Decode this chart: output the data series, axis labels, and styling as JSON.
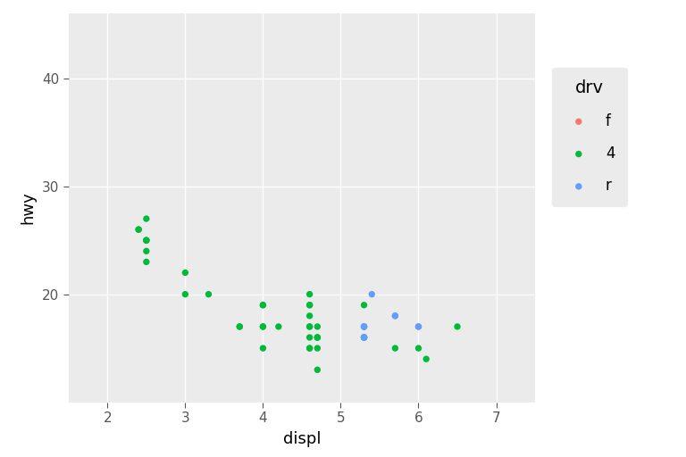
{
  "title": "",
  "xlabel": "displ",
  "ylabel": "hwy",
  "legend_title": "drv",
  "xlim": [
    1.5,
    7.5
  ],
  "ylim": [
    10,
    46
  ],
  "xticks": [
    2,
    3,
    4,
    5,
    6,
    7
  ],
  "yticks": [
    20,
    30,
    40
  ],
  "plot_bg": "#EBEBEB",
  "fig_bg": "#FFFFFF",
  "grid_color": "#FFFFFF",
  "legend_bg": "#EBEBEB",
  "drv_colors": {
    "f": "#F8766D",
    "4": "#00BA38",
    "r": "#619CFF"
  },
  "drv_order": [
    "f",
    "4",
    "r"
  ],
  "suv_data": [
    {
      "displ": 2.4,
      "hwy": 26,
      "drv": "4"
    },
    {
      "displ": 2.4,
      "hwy": 26,
      "drv": "4"
    },
    {
      "displ": 2.5,
      "hwy": 27,
      "drv": "4"
    },
    {
      "displ": 2.5,
      "hwy": 25,
      "drv": "4"
    },
    {
      "displ": 2.5,
      "hwy": 25,
      "drv": "4"
    },
    {
      "displ": 2.5,
      "hwy": 25,
      "drv": "4"
    },
    {
      "displ": 2.5,
      "hwy": 24,
      "drv": "4"
    },
    {
      "displ": 2.5,
      "hwy": 23,
      "drv": "4"
    },
    {
      "displ": 3.0,
      "hwy": 22,
      "drv": "4"
    },
    {
      "displ": 3.0,
      "hwy": 20,
      "drv": "4"
    },
    {
      "displ": 3.3,
      "hwy": 20,
      "drv": "4"
    },
    {
      "displ": 3.7,
      "hwy": 17,
      "drv": "4"
    },
    {
      "displ": 3.7,
      "hwy": 17,
      "drv": "4"
    },
    {
      "displ": 4.0,
      "hwy": 19,
      "drv": "4"
    },
    {
      "displ": 4.0,
      "hwy": 19,
      "drv": "4"
    },
    {
      "displ": 4.0,
      "hwy": 17,
      "drv": "4"
    },
    {
      "displ": 4.0,
      "hwy": 17,
      "drv": "4"
    },
    {
      "displ": 4.0,
      "hwy": 15,
      "drv": "4"
    },
    {
      "displ": 4.2,
      "hwy": 17,
      "drv": "4"
    },
    {
      "displ": 4.6,
      "hwy": 20,
      "drv": "4"
    },
    {
      "displ": 4.6,
      "hwy": 19,
      "drv": "4"
    },
    {
      "displ": 4.6,
      "hwy": 19,
      "drv": "4"
    },
    {
      "displ": 4.6,
      "hwy": 18,
      "drv": "4"
    },
    {
      "displ": 4.6,
      "hwy": 17,
      "drv": "4"
    },
    {
      "displ": 4.6,
      "hwy": 17,
      "drv": "4"
    },
    {
      "displ": 4.6,
      "hwy": 16,
      "drv": "4"
    },
    {
      "displ": 4.6,
      "hwy": 15,
      "drv": "4"
    },
    {
      "displ": 4.6,
      "hwy": 15,
      "drv": "4"
    },
    {
      "displ": 4.7,
      "hwy": 13,
      "drv": "4"
    },
    {
      "displ": 4.7,
      "hwy": 16,
      "drv": "4"
    },
    {
      "displ": 4.7,
      "hwy": 16,
      "drv": "4"
    },
    {
      "displ": 4.7,
      "hwy": 17,
      "drv": "4"
    },
    {
      "displ": 4.7,
      "hwy": 15,
      "drv": "4"
    },
    {
      "displ": 4.7,
      "hwy": 16,
      "drv": "4"
    },
    {
      "displ": 5.3,
      "hwy": 16,
      "drv": "4"
    },
    {
      "displ": 5.3,
      "hwy": 16,
      "drv": "4"
    },
    {
      "displ": 5.3,
      "hwy": 19,
      "drv": "4"
    },
    {
      "displ": 5.7,
      "hwy": 15,
      "drv": "4"
    },
    {
      "displ": 6.0,
      "hwy": 15,
      "drv": "4"
    },
    {
      "displ": 6.1,
      "hwy": 14,
      "drv": "4"
    },
    {
      "displ": 6.5,
      "hwy": 17,
      "drv": "4"
    },
    {
      "displ": 5.3,
      "hwy": 17,
      "drv": "r"
    },
    {
      "displ": 5.3,
      "hwy": 17,
      "drv": "r"
    },
    {
      "displ": 5.3,
      "hwy": 17,
      "drv": "r"
    },
    {
      "displ": 5.3,
      "hwy": 16,
      "drv": "r"
    },
    {
      "displ": 5.3,
      "hwy": 16,
      "drv": "r"
    },
    {
      "displ": 5.3,
      "hwy": 17,
      "drv": "r"
    },
    {
      "displ": 5.3,
      "hwy": 16,
      "drv": "r"
    },
    {
      "displ": 5.4,
      "hwy": 20,
      "drv": "r"
    },
    {
      "displ": 5.7,
      "hwy": 18,
      "drv": "r"
    },
    {
      "displ": 5.7,
      "hwy": 18,
      "drv": "r"
    },
    {
      "displ": 6.0,
      "hwy": 17,
      "drv": "r"
    },
    {
      "displ": 6.0,
      "hwy": 17,
      "drv": "r"
    }
  ],
  "point_size": 28,
  "tick_labelsize": 11,
  "axis_labelsize": 13,
  "legend_fontsize": 12,
  "legend_title_fontsize": 14
}
